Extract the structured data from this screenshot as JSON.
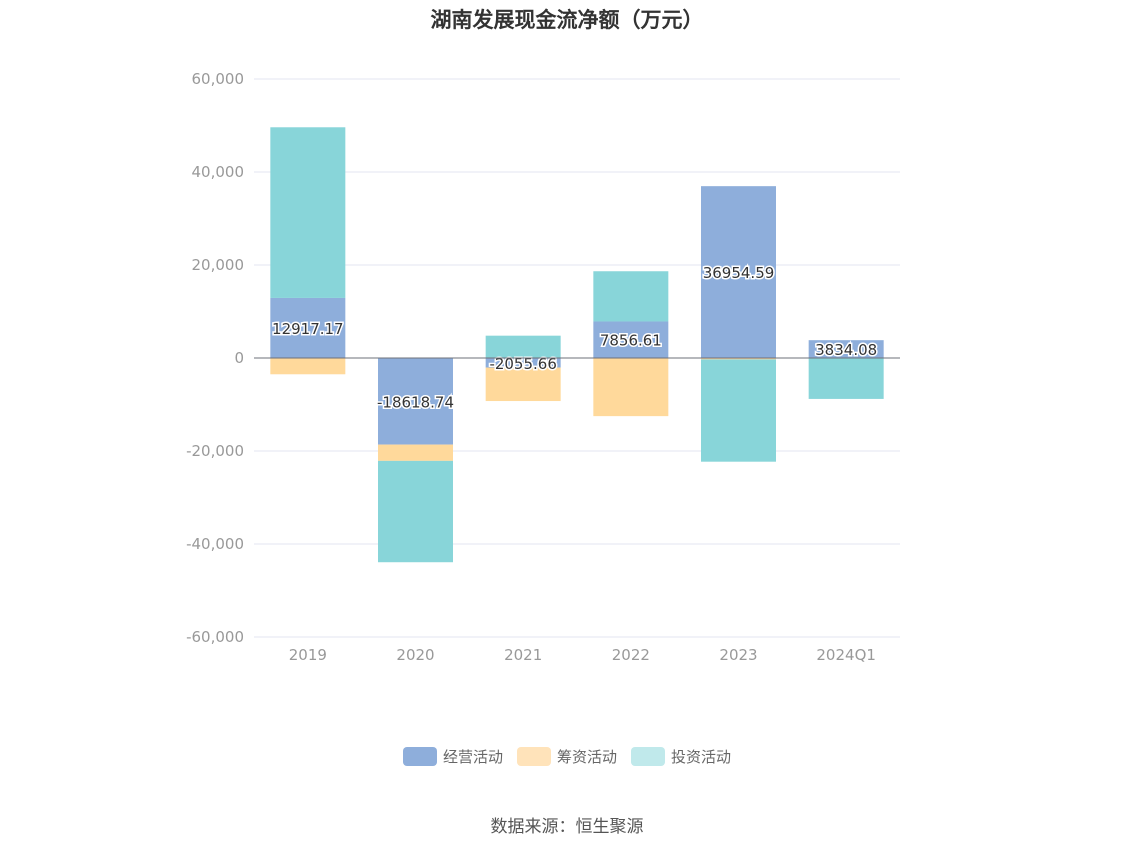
{
  "chart_data": {
    "type": "bar",
    "stacked": true,
    "title": "湖南发展现金流净额（万元）",
    "categories": [
      "2019",
      "2020",
      "2021",
      "2022",
      "2023",
      "2024Q1"
    ],
    "ylim": [
      -60000,
      60000
    ],
    "yticks": [
      60000,
      40000,
      20000,
      0,
      -20000,
      -40000,
      -60000
    ],
    "ytick_labels": [
      "60,000",
      "40,000",
      "20,000",
      "0",
      "-20,000",
      "-40,000",
      "-60,000"
    ],
    "grid": true,
    "legend_position": "bottom",
    "series": [
      {
        "name": "经营活动",
        "color": "#8eaedb",
        "values": [
          12917.17,
          -18618.74,
          -2055.66,
          7856.61,
          36954.59,
          3834.08
        ],
        "labels": [
          "12917.17",
          "-18618.74",
          "-2055.66",
          "7856.61",
          "36954.59",
          "3834.08"
        ]
      },
      {
        "name": "筹资活动",
        "color": "#ffd99b",
        "values": [
          -3500,
          -3500,
          -7200,
          -12500,
          -300,
          0
        ]
      },
      {
        "name": "投资活动",
        "color": "#88d5d9",
        "values": [
          36700,
          -21800,
          4800,
          10800,
          -22000,
          -8800
        ]
      }
    ]
  },
  "legend": [
    {
      "label": "经营活动",
      "color": "#8eaedb"
    },
    {
      "label": "筹资活动",
      "color": "#ffe3ba"
    },
    {
      "label": "投资活动",
      "color": "#c0e9eb"
    }
  ],
  "source": "数据来源：恒生聚源"
}
